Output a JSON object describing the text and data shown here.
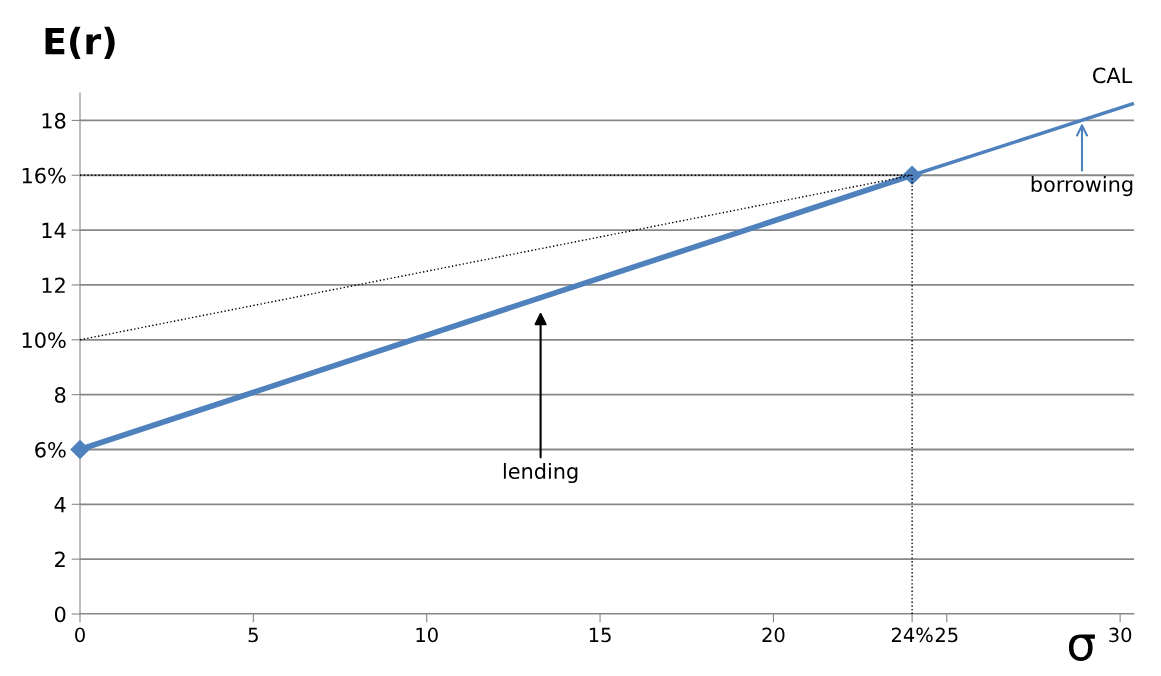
{
  "chart_data": {
    "type": "line",
    "xlabel": "σ",
    "ylabel": "E(r)",
    "xlim": [
      0,
      30.4
    ],
    "xticks": [
      0,
      5,
      10,
      15,
      20,
      {
        "value": 24,
        "label": "24%"
      },
      25,
      30
    ],
    "ylim": [
      0,
      19
    ],
    "yticks": [
      0,
      2,
      4,
      {
        "value": 6,
        "label": "6%"
      },
      8,
      {
        "value": 10,
        "label": "10%"
      },
      12,
      14,
      {
        "value": 16,
        "label": "16%"
      },
      18
    ],
    "grid": "y",
    "legend": false,
    "series": [
      {
        "color": "#4f81bd",
        "x": [
          0,
          24
        ],
        "values": [
          6,
          16
        ],
        "marker": "diamond",
        "line_style": "solid"
      },
      {
        "color": "#4f81bd",
        "x": [
          24,
          30.35
        ],
        "values": [
          16,
          18.6
        ],
        "marker": "none",
        "line_style": "solid"
      },
      {
        "color": "#000000",
        "x": [
          0,
          24
        ],
        "values": [
          10,
          16
        ],
        "marker": "none",
        "line_style": "dotted"
      },
      {
        "color": "#000000",
        "x": [
          0,
          24
        ],
        "values": [
          16,
          16
        ],
        "marker": "none",
        "line_style": "dotted"
      },
      {
        "color": "#000000",
        "x": [
          24,
          24
        ],
        "values": [
          0,
          16
        ],
        "marker": "none",
        "line_style": "dotted"
      }
    ],
    "annotations": [
      {
        "text": "CAL",
        "x": 30.35,
        "y": 18.6
      },
      "lending",
      {
        "text": "borrowing",
        "x": 28.9,
        "y": 18.0
      }
    ]
  }
}
